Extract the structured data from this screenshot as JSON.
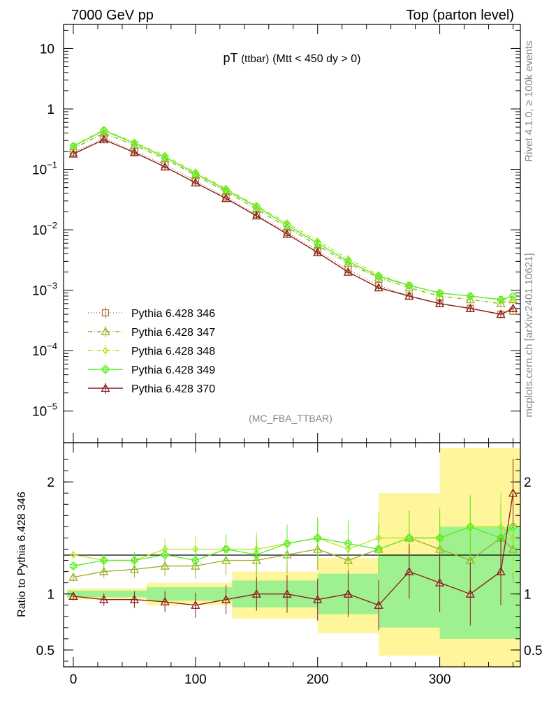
{
  "header": {
    "left": "7000 GeV pp",
    "right": "Top (parton level)"
  },
  "side_labels": {
    "rivet": "Rivet 4.1.0, ≥ 100k events",
    "mcplots": "mcplots.cern.ch [arXiv:2401.10621]"
  },
  "analysis_tag": "(MC_FBA_TTBAR)",
  "colors": {
    "s346": "#a67c3a",
    "s347": "#9aae22",
    "s348": "#b5e61d",
    "s349": "#55ee22",
    "s370": "#8b1a1a",
    "band_yellow": "#fff59a",
    "band_green": "#8ef08e"
  },
  "chart_data": [
    {
      "type": "line",
      "panel": "main",
      "title": "pT (ttbar) (Mtt < 450 dy > 0)",
      "title_parts": {
        "main": "pT",
        "sub": "(ttbar)",
        "rest": "(Mtt < 450 dy > 0)"
      },
      "xlabel": "",
      "ylabel": "",
      "xlim": [
        -8,
        366
      ],
      "ylim": [
        3e-06,
        25
      ],
      "yscale": "log",
      "x_ticks": [
        0,
        100,
        200,
        300
      ],
      "y_ticks": [
        {
          "value": 10,
          "label": "10"
        },
        {
          "value": 1,
          "label": "1"
        },
        {
          "value": 0.1,
          "label": "10",
          "exp": "−1"
        },
        {
          "value": 0.01,
          "label": "10",
          "exp": "−2"
        },
        {
          "value": 0.001,
          "label": "10",
          "exp": "−3"
        },
        {
          "value": 0.0001,
          "label": "10",
          "exp": "−4"
        },
        {
          "value": 1e-05,
          "label": "10",
          "exp": "−5"
        }
      ],
      "legend_position": "bottom-left",
      "series": [
        {
          "name": "Pythia 6.428 346",
          "marker": "square-open",
          "line": "dotted",
          "x": [
            0,
            25,
            50,
            75,
            100,
            125,
            150,
            175,
            200,
            225,
            250,
            275,
            300,
            325,
            350,
            360
          ],
          "values": [
            0.19,
            0.33,
            0.2,
            0.12,
            0.065,
            0.035,
            0.018,
            0.009,
            0.0045,
            0.0022,
            0.0012,
            0.0008,
            0.0006,
            0.0005,
            0.0004,
            0.00045
          ]
        },
        {
          "name": "Pythia 6.428 347",
          "marker": "triangle-open",
          "line": "dashdot",
          "x": [
            0,
            25,
            50,
            75,
            100,
            125,
            150,
            175,
            200,
            225,
            250,
            275,
            300,
            325,
            350,
            360
          ],
          "values": [
            0.22,
            0.4,
            0.25,
            0.15,
            0.08,
            0.043,
            0.022,
            0.011,
            0.0055,
            0.0028,
            0.0016,
            0.0011,
            0.0008,
            0.0007,
            0.0006,
            0.0007
          ]
        },
        {
          "name": "Pythia 6.428 348",
          "marker": "diamond-open",
          "line": "dashdot",
          "x": [
            0,
            25,
            50,
            75,
            100,
            125,
            150,
            175,
            200,
            225,
            250,
            275,
            300,
            325,
            350,
            360
          ],
          "values": [
            0.25,
            0.45,
            0.28,
            0.17,
            0.09,
            0.048,
            0.025,
            0.013,
            0.0065,
            0.0033,
            0.0018,
            0.0012,
            0.0009,
            0.0008,
            0.0007,
            0.0007
          ]
        },
        {
          "name": "Pythia 6.428 349",
          "marker": "cross-open",
          "line": "solid",
          "x": [
            0,
            25,
            50,
            75,
            100,
            125,
            150,
            175,
            200,
            225,
            250,
            275,
            300,
            325,
            350,
            360
          ],
          "values": [
            0.24,
            0.44,
            0.27,
            0.16,
            0.085,
            0.046,
            0.024,
            0.012,
            0.006,
            0.003,
            0.0017,
            0.0012,
            0.0009,
            0.0008,
            0.0007,
            0.0008
          ]
        },
        {
          "name": "Pythia 6.428 370",
          "marker": "triangle-open",
          "line": "solid",
          "x": [
            0,
            25,
            50,
            75,
            100,
            125,
            150,
            175,
            200,
            225,
            250,
            275,
            300,
            325,
            350,
            360
          ],
          "values": [
            0.18,
            0.31,
            0.19,
            0.11,
            0.06,
            0.033,
            0.017,
            0.0085,
            0.0042,
            0.002,
            0.0011,
            0.0008,
            0.0006,
            0.0005,
            0.0004,
            0.0005
          ]
        }
      ]
    },
    {
      "type": "line",
      "panel": "ratio",
      "title": "",
      "xlabel": "",
      "ylabel": "Ratio to Pythia 6.428 346",
      "xlim": [
        -8,
        366
      ],
      "ylim": [
        0.35,
        2.35
      ],
      "yscale": "linear",
      "x_ticks": [
        0,
        100,
        200,
        300
      ],
      "y_ticks": [
        {
          "value": 0.5,
          "label": "0.5"
        },
        {
          "value": 1,
          "label": "1"
        },
        {
          "value": 2,
          "label": "2"
        }
      ],
      "series": [
        {
          "name": "Pythia 6.428 347",
          "x": [
            0,
            25,
            50,
            75,
            100,
            125,
            150,
            175,
            200,
            225,
            250,
            275,
            300,
            325,
            350,
            360
          ],
          "values": [
            1.15,
            1.2,
            1.22,
            1.25,
            1.25,
            1.3,
            1.3,
            1.35,
            1.4,
            1.3,
            1.4,
            1.5,
            1.4,
            1.3,
            1.5,
            1.4
          ]
        },
        {
          "name": "Pythia 6.428 348",
          "x": [
            0,
            25,
            50,
            75,
            100,
            125,
            150,
            175,
            200,
            225,
            250,
            275,
            300,
            325,
            350,
            360
          ],
          "values": [
            1.35,
            1.3,
            1.3,
            1.4,
            1.4,
            1.4,
            1.4,
            1.45,
            1.5,
            1.4,
            1.5,
            1.5,
            1.5,
            1.6,
            1.6,
            1.5
          ]
        },
        {
          "name": "Pythia 6.428 349",
          "x": [
            0,
            25,
            50,
            75,
            100,
            125,
            150,
            175,
            200,
            225,
            250,
            275,
            300,
            325,
            350,
            360
          ],
          "values": [
            1.25,
            1.3,
            1.3,
            1.35,
            1.3,
            1.4,
            1.35,
            1.45,
            1.5,
            1.45,
            1.4,
            1.5,
            1.5,
            1.6,
            1.5,
            1.6
          ]
        },
        {
          "name": "Pythia 6.428 370",
          "x": [
            0,
            25,
            50,
            75,
            100,
            125,
            150,
            175,
            200,
            225,
            250,
            275,
            300,
            325,
            350,
            360
          ],
          "values": [
            0.98,
            0.95,
            0.95,
            0.93,
            0.9,
            0.95,
            1.0,
            1.0,
            0.95,
            1.0,
            0.9,
            1.2,
            1.1,
            1.0,
            1.2,
            1.9
          ]
        }
      ]
    }
  ]
}
